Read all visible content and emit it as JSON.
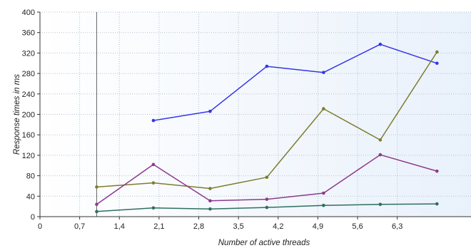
{
  "chart_data": {
    "type": "line",
    "title": "",
    "xlabel": "Number of active threads",
    "ylabel": "Response times in ms",
    "xlim": [
      0,
      7.6
    ],
    "ylim": [
      0,
      400
    ],
    "xticks": [
      "0",
      "0,7",
      "1,4",
      "2,1",
      "2,8",
      "3,5",
      "4,2",
      "4,9",
      "5,6",
      "6,3"
    ],
    "yticks": [
      "0",
      "40",
      "80",
      "120",
      "160",
      "200",
      "240",
      "280",
      "320",
      "360",
      "400"
    ],
    "grid": true,
    "marker_line_x": 1,
    "series": [
      {
        "color": "#3535e6",
        "points": [
          [
            2,
            188
          ],
          [
            3,
            206
          ],
          [
            4,
            294
          ],
          [
            5,
            282
          ],
          [
            6,
            337
          ],
          [
            7,
            300
          ]
        ]
      },
      {
        "color": "#7d7d2e",
        "points": [
          [
            1,
            58
          ],
          [
            2,
            66
          ],
          [
            3,
            55
          ],
          [
            4,
            77
          ],
          [
            5,
            211
          ],
          [
            6,
            150
          ],
          [
            7,
            322
          ]
        ]
      },
      {
        "color": "#8c3a8c",
        "points": [
          [
            1,
            24
          ],
          [
            2,
            102
          ],
          [
            3,
            31
          ],
          [
            4,
            34
          ],
          [
            5,
            46
          ],
          [
            6,
            121
          ],
          [
            7,
            89
          ]
        ]
      },
      {
        "color": "#2f6f5e",
        "points": [
          [
            1,
            10
          ],
          [
            2,
            17
          ],
          [
            3,
            15
          ],
          [
            4,
            18
          ],
          [
            5,
            22
          ],
          [
            6,
            24
          ],
          [
            7,
            25
          ]
        ]
      }
    ]
  }
}
